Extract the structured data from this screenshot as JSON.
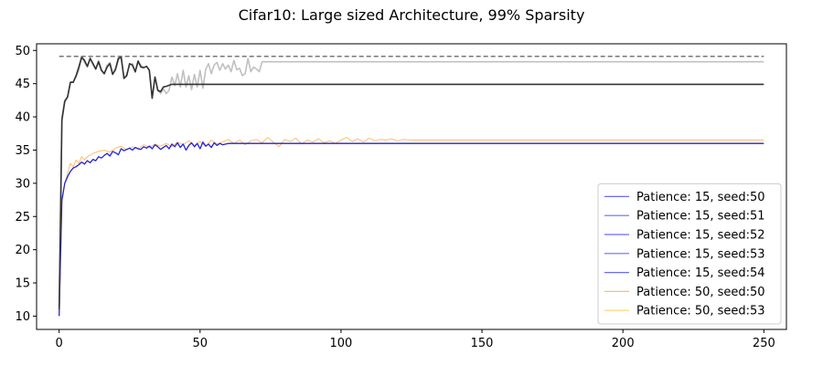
{
  "chart_data": {
    "type": "line",
    "title": "Cifar10: Large sized Architecture, 99% Sparsity",
    "xlabel": "",
    "ylabel": "",
    "xlim": [
      -8,
      258
    ],
    "ylim": [
      8,
      51
    ],
    "xticks": [
      0,
      50,
      100,
      150,
      200,
      250
    ],
    "yticks": [
      10,
      15,
      20,
      25,
      30,
      35,
      40,
      45,
      50
    ],
    "grid": false,
    "legend_position": "lower-right",
    "series": [
      {
        "name": "Patience: 15, seed:50",
        "color": "#6a6aff",
        "role": "legend"
      },
      {
        "name": "Patience: 15, seed:51",
        "color": "#6a6aff",
        "role": "legend"
      },
      {
        "name": "Patience: 15, seed:52",
        "color": "#6a6aff",
        "role": "legend"
      },
      {
        "name": "Patience: 15, seed:53",
        "color": "#6a6aff",
        "role": "legend"
      },
      {
        "name": "Patience: 15, seed:54",
        "color": "#6a6aff",
        "role": "legend"
      },
      {
        "name": "Patience: 50, seed:50",
        "color": "#ffc060",
        "role": "legend"
      },
      {
        "name": "Patience: 50, seed:53",
        "color": "#ffd070",
        "role": "legend"
      }
    ],
    "lines": [
      {
        "color": "#ffb347",
        "width": 1,
        "opacity": 0.85,
        "end_x": 250,
        "x": [
          0,
          1,
          2,
          3,
          4,
          5,
          6,
          7,
          8,
          9,
          10,
          12,
          14,
          16,
          18,
          20,
          22,
          24,
          26,
          28,
          30,
          32,
          34,
          36,
          38,
          40,
          42,
          44,
          46,
          48,
          50,
          52,
          54,
          56,
          58,
          60,
          62,
          64,
          66,
          68,
          70,
          72,
          74,
          76,
          78,
          80,
          82,
          84,
          86,
          88,
          90,
          92,
          94,
          96,
          98,
          100,
          102,
          104,
          106,
          108,
          110,
          112,
          114,
          116,
          118,
          120,
          122,
          125
        ],
        "y": [
          10.5,
          27,
          30,
          31.5,
          33,
          32.5,
          33.5,
          33,
          34,
          33.5,
          34,
          34.5,
          34.8,
          35,
          34.7,
          35.3,
          35.6,
          35,
          35.5,
          35.2,
          35.8,
          35.4,
          35.9,
          35.6,
          36,
          35.5,
          36.2,
          35.8,
          36.4,
          35.7,
          36.3,
          35.5,
          36.5,
          35.9,
          36.2,
          36.6,
          36,
          36.5,
          35.8,
          36.4,
          36.6,
          36.1,
          36.9,
          36.2,
          35.5,
          36.6,
          36.3,
          36.8,
          35.9,
          36.5,
          36.2,
          36.7,
          36.1,
          36.4,
          36,
          36.5,
          36.9,
          36.3,
          36.7,
          36.2,
          36.8,
          36.4,
          36.6,
          36.5,
          36.7,
          36.4,
          36.6,
          36.5
        ]
      },
      {
        "color": "#2222dd",
        "width": 1.3,
        "opacity": 1,
        "end_x": 250,
        "x": [
          0,
          1,
          2,
          3,
          4,
          5,
          6,
          7,
          8,
          9,
          10,
          11,
          12,
          13,
          14,
          15,
          16,
          17,
          18,
          19,
          20,
          21,
          22,
          23,
          24,
          25,
          26,
          27,
          28,
          29,
          30,
          31,
          32,
          33,
          34,
          35,
          36,
          37,
          38,
          39,
          40,
          41,
          42,
          43,
          44,
          45,
          46,
          47,
          48,
          49,
          50,
          51,
          52,
          53,
          54,
          55,
          56,
          57,
          58,
          60
        ],
        "y": [
          10,
          27.5,
          30,
          31,
          31.8,
          32.3,
          32.5,
          32.8,
          33.2,
          32.9,
          33.4,
          33.1,
          33.6,
          33.4,
          34,
          33.8,
          34.2,
          34.5,
          34.1,
          34.8,
          34.6,
          34.3,
          35.2,
          34.9,
          35.1,
          35.3,
          35,
          35.4,
          35.2,
          35.1,
          35.5,
          35.3,
          35.6,
          35.2,
          35.8,
          35.5,
          35.1,
          35.4,
          35.7,
          35.2,
          35.9,
          35.5,
          36.1,
          35.4,
          35.9,
          35,
          35.7,
          36.1,
          35.5,
          36,
          35.2,
          36.2,
          35.6,
          35.9,
          35.4,
          36.1,
          35.7,
          36,
          35.8,
          36
        ]
      },
      {
        "color": "#c0c0c0",
        "width": 1.6,
        "opacity": 1,
        "end_x": 250,
        "x": [
          0,
          1,
          2,
          3,
          4,
          5,
          6,
          7,
          8,
          9,
          10,
          11,
          12,
          13,
          14,
          15,
          16,
          17,
          18,
          19,
          20,
          21,
          22,
          23,
          24,
          25,
          26,
          27,
          28,
          29,
          30,
          31,
          32,
          33,
          34,
          35,
          36,
          37,
          38,
          39,
          40,
          41,
          42,
          43,
          44,
          45,
          46,
          47,
          48,
          49,
          50,
          51,
          52,
          53,
          54,
          55,
          56,
          57,
          58,
          59,
          60,
          61,
          62,
          63,
          64,
          65,
          66,
          67,
          68,
          69,
          70,
          71,
          72,
          73
        ],
        "y": [
          11,
          40,
          42.5,
          43,
          45.2,
          45.3,
          46,
          47,
          49,
          48.2,
          47.5,
          48.8,
          47.8,
          47.2,
          48.5,
          47.2,
          46.5,
          47.8,
          48.2,
          46.5,
          47,
          48.5,
          49,
          45.8,
          46.5,
          47.8,
          48,
          46.7,
          48.3,
          47.8,
          47.4,
          47.6,
          47.1,
          43,
          46,
          44,
          43.5,
          44.2,
          43.5,
          44,
          46,
          44.7,
          46.5,
          44.5,
          47,
          44.5,
          46.2,
          44.1,
          46.4,
          44.5,
          47,
          44.3,
          47.2,
          48,
          46.5,
          47.8,
          48.2,
          47,
          48,
          47.2,
          47.8,
          46.8,
          48.5,
          47.1,
          47.3,
          46.2,
          46.5,
          48.8,
          46.8,
          47.5,
          47.2,
          46.8,
          48.3,
          48.3
        ]
      },
      {
        "color": "#333333",
        "width": 1.6,
        "opacity": 1,
        "end_x": 250,
        "x": [
          0,
          1,
          2,
          3,
          4,
          5,
          6,
          7,
          8,
          9,
          10,
          11,
          12,
          13,
          14,
          15,
          16,
          17,
          18,
          19,
          20,
          21,
          22,
          23,
          24,
          25,
          26,
          27,
          28,
          29,
          30,
          31,
          32,
          33,
          34,
          35,
          36,
          37,
          38,
          40
        ],
        "y": [
          11,
          39.5,
          42.3,
          43,
          45.2,
          45.2,
          46.2,
          47.5,
          49,
          48.5,
          47.6,
          48.8,
          48,
          47.2,
          48.3,
          47,
          46.5,
          47.5,
          48,
          46.4,
          47.2,
          48.8,
          49,
          45.8,
          46.2,
          48,
          47.8,
          46.8,
          48.4,
          47.5,
          47.4,
          47.6,
          47,
          42.8,
          46,
          44,
          43.8,
          44.5,
          44.6,
          44.9
        ]
      },
      {
        "color": "#777777",
        "width": 1.5,
        "opacity": 1,
        "dash": "5,3",
        "end_x": 250,
        "x": [
          0,
          250
        ],
        "y": [
          49.1,
          49.1
        ]
      }
    ]
  }
}
